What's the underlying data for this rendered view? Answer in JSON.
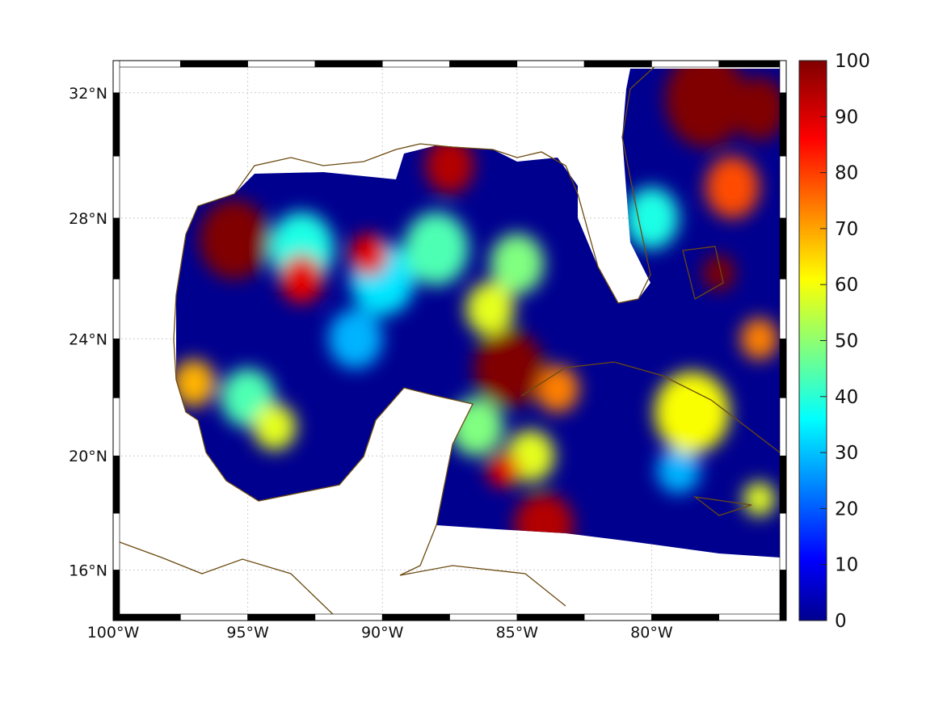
{
  "chart_data": {
    "type": "heatmap",
    "title": "",
    "xlabel": "",
    "ylabel": "",
    "xlim": [
      -100,
      -75
    ],
    "ylim": [
      14.2,
      33
    ],
    "x_ticks": [
      {
        "value": -100,
        "label": "100°W"
      },
      {
        "value": -95,
        "label": "95°W"
      },
      {
        "value": -90,
        "label": "90°W"
      },
      {
        "value": -85,
        "label": "85°W"
      },
      {
        "value": -80,
        "label": "80°W"
      }
    ],
    "y_ticks": [
      {
        "value": 32,
        "label": "32°N"
      },
      {
        "value": 28,
        "label": "28°N"
      },
      {
        "value": 24,
        "label": "24°N"
      },
      {
        "value": 20,
        "label": "20°N"
      },
      {
        "value": 16,
        "label": "16°N"
      }
    ],
    "grid": true,
    "colormap": "jet",
    "colorbar": {
      "range": [
        0,
        100
      ],
      "ticks": [
        "0",
        "10",
        "20",
        "30",
        "40",
        "50",
        "60",
        "70",
        "80",
        "90",
        "100"
      ],
      "placement": "right"
    },
    "background_value": 0,
    "hotspots": [
      {
        "lon": -91,
        "lat": 24,
        "value": 30,
        "r": 1.0
      },
      {
        "lon": -79,
        "lat": 19.5,
        "value": 30,
        "r": 0.8
      },
      {
        "lon": -90,
        "lat": 26,
        "value": 35,
        "r": 1.2
      },
      {
        "lon": -93,
        "lat": 27,
        "value": 40,
        "r": 1.2
      },
      {
        "lon": -80,
        "lat": 28,
        "value": 40,
        "r": 1.0
      },
      {
        "lon": -95,
        "lat": 22,
        "value": 45,
        "r": 1.0
      },
      {
        "lon": -88,
        "lat": 27,
        "value": 45,
        "r": 1.2
      },
      {
        "lon": -86.5,
        "lat": 21,
        "value": 50,
        "r": 1.0
      },
      {
        "lon": -85,
        "lat": 26.5,
        "value": 50,
        "r": 1.0
      },
      {
        "lon": -86,
        "lat": 25,
        "value": 60,
        "r": 0.9
      },
      {
        "lon": -94,
        "lat": 21,
        "value": 60,
        "r": 0.8
      },
      {
        "lon": -84.5,
        "lat": 20,
        "value": 60,
        "r": 0.9
      },
      {
        "lon": -76,
        "lat": 18.5,
        "value": 60,
        "r": 0.6
      },
      {
        "lon": -78.5,
        "lat": 21.5,
        "value": 62,
        "r": 1.4
      },
      {
        "lon": -97,
        "lat": 22.5,
        "value": 70,
        "r": 0.8
      },
      {
        "lon": -76,
        "lat": 24,
        "value": 75,
        "r": 0.7
      },
      {
        "lon": -83.5,
        "lat": 22.3,
        "value": 75,
        "r": 0.8
      },
      {
        "lon": -77,
        "lat": 29,
        "value": 80,
        "r": 1.0
      },
      {
        "lon": -93,
        "lat": 26,
        "value": 90,
        "r": 0.8
      },
      {
        "lon": -90.5,
        "lat": 26.8,
        "value": 90,
        "r": 0.7
      },
      {
        "lon": -84,
        "lat": 17.6,
        "value": 95,
        "r": 1.1
      },
      {
        "lon": -87.5,
        "lat": 29.7,
        "value": 95,
        "r": 0.9
      },
      {
        "lon": -85.5,
        "lat": 19.5,
        "value": 90,
        "r": 0.6
      },
      {
        "lon": -77.5,
        "lat": 26.2,
        "value": 100,
        "r": 0.6
      },
      {
        "lon": -95.5,
        "lat": 27.3,
        "value": 100,
        "r": 1.3
      },
      {
        "lon": -85.3,
        "lat": 23,
        "value": 100,
        "r": 1.3
      },
      {
        "lon": -78,
        "lat": 31.8,
        "value": 100,
        "r": 1.5
      },
      {
        "lon": -76,
        "lat": 31.5,
        "value": 100,
        "r": 1.0
      }
    ]
  }
}
